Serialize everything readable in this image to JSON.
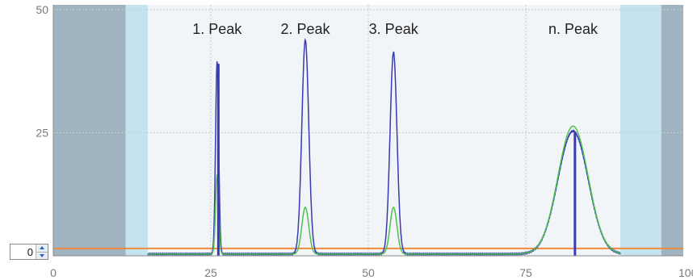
{
  "offset_control": {
    "value": "0"
  },
  "chart_data": {
    "type": "line",
    "xlim": [
      0,
      100
    ],
    "ylim": [
      0,
      51
    ],
    "x_ticks": [
      {
        "value": 0,
        "label": "0"
      },
      {
        "value": 25,
        "label": "25"
      },
      {
        "value": 50,
        "label": "50"
      },
      {
        "value": 75,
        "label": "75"
      },
      {
        "value": 100,
        "label": "100"
      }
    ],
    "y_ticks": [
      {
        "value": 25,
        "label": "25"
      },
      {
        "value": 50,
        "label": "50"
      }
    ],
    "grid": true,
    "colors": {
      "plot_background": "#f2f5f8",
      "grid": "#c8cdd3",
      "outer_band": "#9fb3c0",
      "inner_band": "#c4e3ef",
      "threshold_line": "#f08a3c",
      "blue_series": "#3a3ab4",
      "green_series": "#4cc24c",
      "peak_marker": "#3a3ab4"
    },
    "shaded_regions": [
      {
        "from": 0,
        "to": 11.5,
        "style": "outer_band"
      },
      {
        "from": 11.5,
        "to": 15,
        "style": "inner_band"
      },
      {
        "from": 90,
        "to": 96.5,
        "style": "inner_band"
      },
      {
        "from": 96.5,
        "to": 100,
        "style": "outer_band"
      }
    ],
    "threshold": {
      "y": 1.5
    },
    "peaks": [
      {
        "label": "1. Peak",
        "x": 26,
        "blue_height": 39,
        "green_height": 16,
        "width": 0.25,
        "marker_x": 26.2
      },
      {
        "label": "2. Peak",
        "x": 40,
        "blue_height": 43.5,
        "green_height": 9.5,
        "width": 0.55,
        "marker_x": null
      },
      {
        "label": "3. Peak",
        "x": 54,
        "blue_height": 41,
        "green_height": 9.5,
        "width": 0.55,
        "marker_x": null
      },
      {
        "label": "n. Peak",
        "x": 82.5,
        "blue_height": 25,
        "green_height": 26,
        "width": 2.4,
        "marker_x": 82.8
      }
    ],
    "series": [
      {
        "color_key": "blue_series",
        "heights_key": "blue_height"
      },
      {
        "color_key": "green_series",
        "heights_key": "green_height"
      }
    ]
  }
}
